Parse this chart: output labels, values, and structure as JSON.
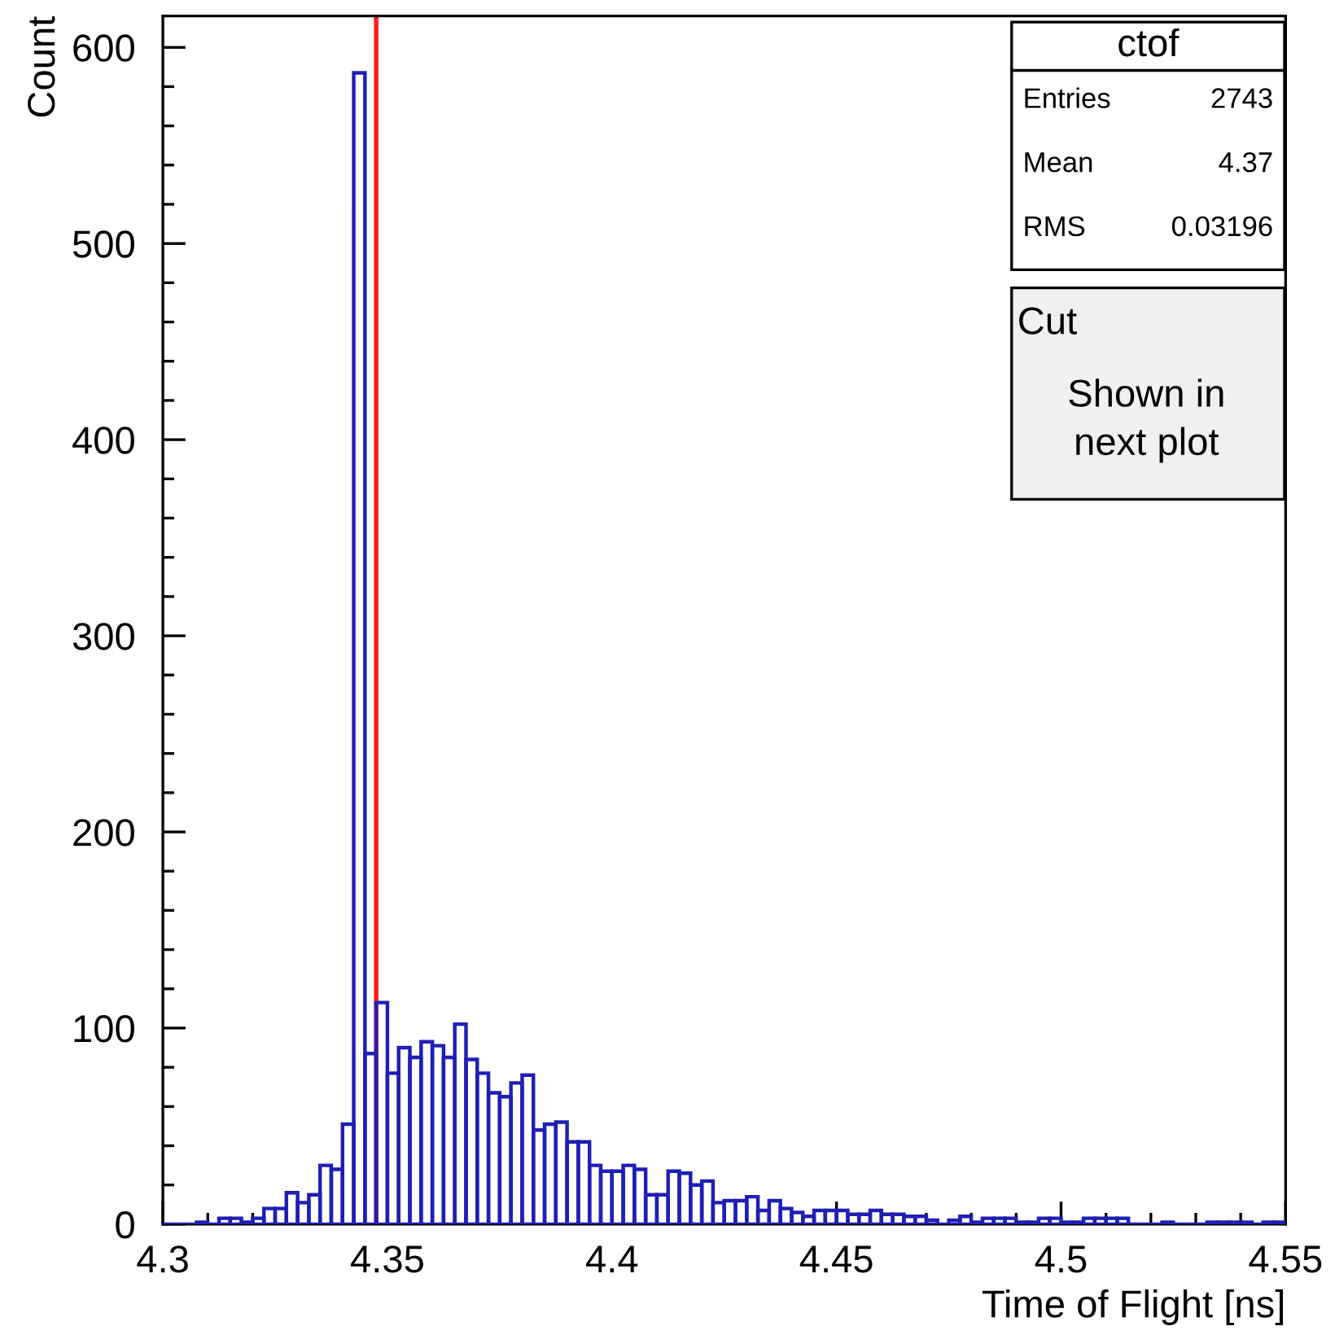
{
  "chart_data": {
    "type": "histogram",
    "xlabel": "Time of Flight [ns]",
    "ylabel": "Count",
    "bins": [
      4.3,
      4.3025,
      4.305,
      4.3075,
      4.31,
      4.3125,
      4.315,
      4.3175,
      4.32,
      4.3225,
      4.325,
      4.3275,
      4.33,
      4.3325,
      4.335,
      4.3375,
      4.34,
      4.3425,
      4.345,
      4.3475,
      4.35,
      4.3525,
      4.355,
      4.3575,
      4.36,
      4.3625,
      4.365,
      4.3675,
      4.37,
      4.3725,
      4.375,
      4.3775,
      4.38,
      4.3825,
      4.385,
      4.3875,
      4.39,
      4.3925,
      4.395,
      4.3975,
      4.4,
      4.4025,
      4.405,
      4.4075,
      4.41,
      4.4125,
      4.415,
      4.4175,
      4.42,
      4.4225,
      4.425,
      4.4275,
      4.43,
      4.4325,
      4.435,
      4.4375,
      4.44,
      4.4425,
      4.445,
      4.4475,
      4.45,
      4.4525,
      4.455,
      4.4575,
      4.46,
      4.4625,
      4.465,
      4.4675,
      4.47,
      4.4725,
      4.475,
      4.4775,
      4.48,
      4.4825,
      4.485,
      4.4875,
      4.49,
      4.4925,
      4.495,
      4.4975,
      4.5,
      4.5025,
      4.505,
      4.5075,
      4.51,
      4.5125,
      4.515,
      4.5175,
      4.52,
      4.5225,
      4.525,
      4.5275,
      4.53,
      4.5325,
      4.535,
      4.5375,
      4.54,
      4.5425,
      4.545,
      4.5475,
      4.55
    ],
    "values": [
      0,
      0,
      0,
      1,
      0,
      3,
      3,
      1,
      3,
      8,
      8,
      16,
      11,
      15,
      30,
      28,
      51,
      587,
      87,
      113,
      77,
      90,
      85,
      93,
      91,
      85,
      102,
      84,
      77,
      67,
      65,
      72,
      76,
      48,
      51,
      52,
      42,
      42,
      30,
      27,
      27,
      30,
      28,
      15,
      15,
      27,
      26,
      20,
      22,
      11,
      12,
      12,
      14,
      7,
      12,
      8,
      6,
      4,
      7,
      7,
      7,
      5,
      5,
      7,
      5,
      5,
      4,
      4,
      2,
      0,
      2,
      4,
      1,
      3,
      3,
      3,
      1,
      1,
      3,
      3,
      1,
      1,
      3,
      3,
      3,
      3,
      0,
      0,
      0,
      1,
      0,
      0,
      0,
      1,
      1,
      1,
      1,
      0,
      1,
      1
    ],
    "color": "#1f1fb4",
    "xlim": [
      4.3,
      4.55
    ],
    "xticks": [
      4.3,
      4.35,
      4.4,
      4.45,
      4.5,
      4.55
    ],
    "ylim": [
      0,
      616
    ],
    "yticks": [
      0,
      100,
      200,
      300,
      400,
      500,
      600
    ],
    "grid": false,
    "legend": false,
    "ref_lines": [
      {
        "axis": "x",
        "value": 4.3475,
        "color": "#ff2020"
      }
    ],
    "annotations": [
      "ctof",
      "Entries",
      "2743",
      "Mean",
      "4.37",
      "RMS",
      "0.03196",
      "Cut",
      "Shown in\nnext plot"
    ]
  }
}
